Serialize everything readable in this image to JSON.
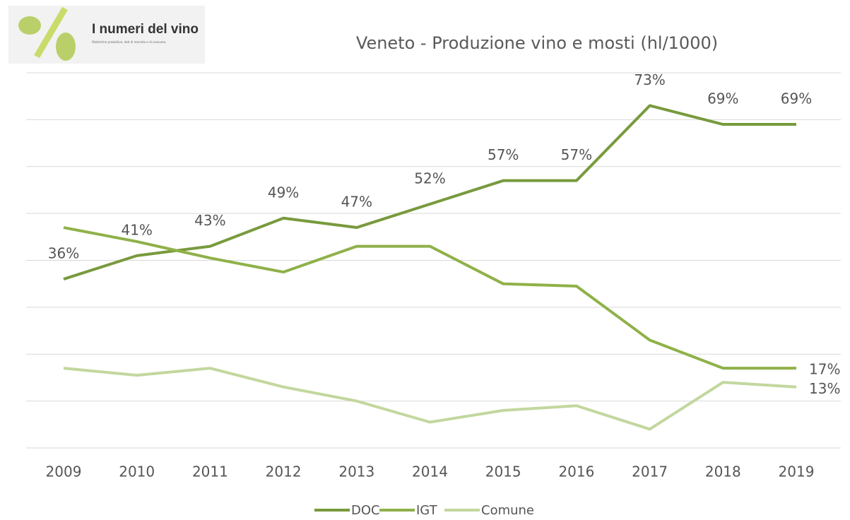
{
  "logo": {
    "title": "I numeri del vino",
    "subtitle": "Statistiche produttive, dati di mercato e di consumo."
  },
  "chart_data": {
    "type": "line",
    "title": "Veneto - Produzione vino e mosti (hl/1000)",
    "categories": [
      "2009",
      "2010",
      "2011",
      "2012",
      "2013",
      "2014",
      "2015",
      "2016",
      "2017",
      "2018",
      "2019"
    ],
    "series": [
      {
        "name": "DOC",
        "color": "#789a3d",
        "values": [
          36,
          41,
          43,
          49,
          47,
          52,
          57,
          57,
          73,
          69,
          69
        ],
        "value_labels": [
          "36%",
          "41%",
          "43%",
          "49%",
          "47%",
          "52%",
          "57%",
          "57%",
          "73%",
          "69%",
          "69%"
        ]
      },
      {
        "name": "IGT",
        "color": "#8fb149",
        "values": [
          47,
          44,
          40.5,
          37.5,
          43,
          43,
          35,
          34.5,
          23,
          17,
          17
        ],
        "value_labels": [
          null,
          null,
          null,
          null,
          null,
          null,
          null,
          null,
          null,
          null,
          "17%"
        ]
      },
      {
        "name": "Comune",
        "color": "#c3d79e",
        "values": [
          17,
          15.5,
          17,
          13,
          10,
          5.5,
          8,
          9,
          4,
          14,
          13
        ],
        "value_labels": [
          null,
          null,
          null,
          null,
          null,
          null,
          null,
          null,
          null,
          null,
          "13%"
        ]
      }
    ],
    "ylim": [
      0,
      80
    ],
    "yticks": [
      0,
      10,
      20,
      30,
      40,
      50,
      60,
      70,
      80
    ],
    "grid": true,
    "legend": "bottom"
  }
}
